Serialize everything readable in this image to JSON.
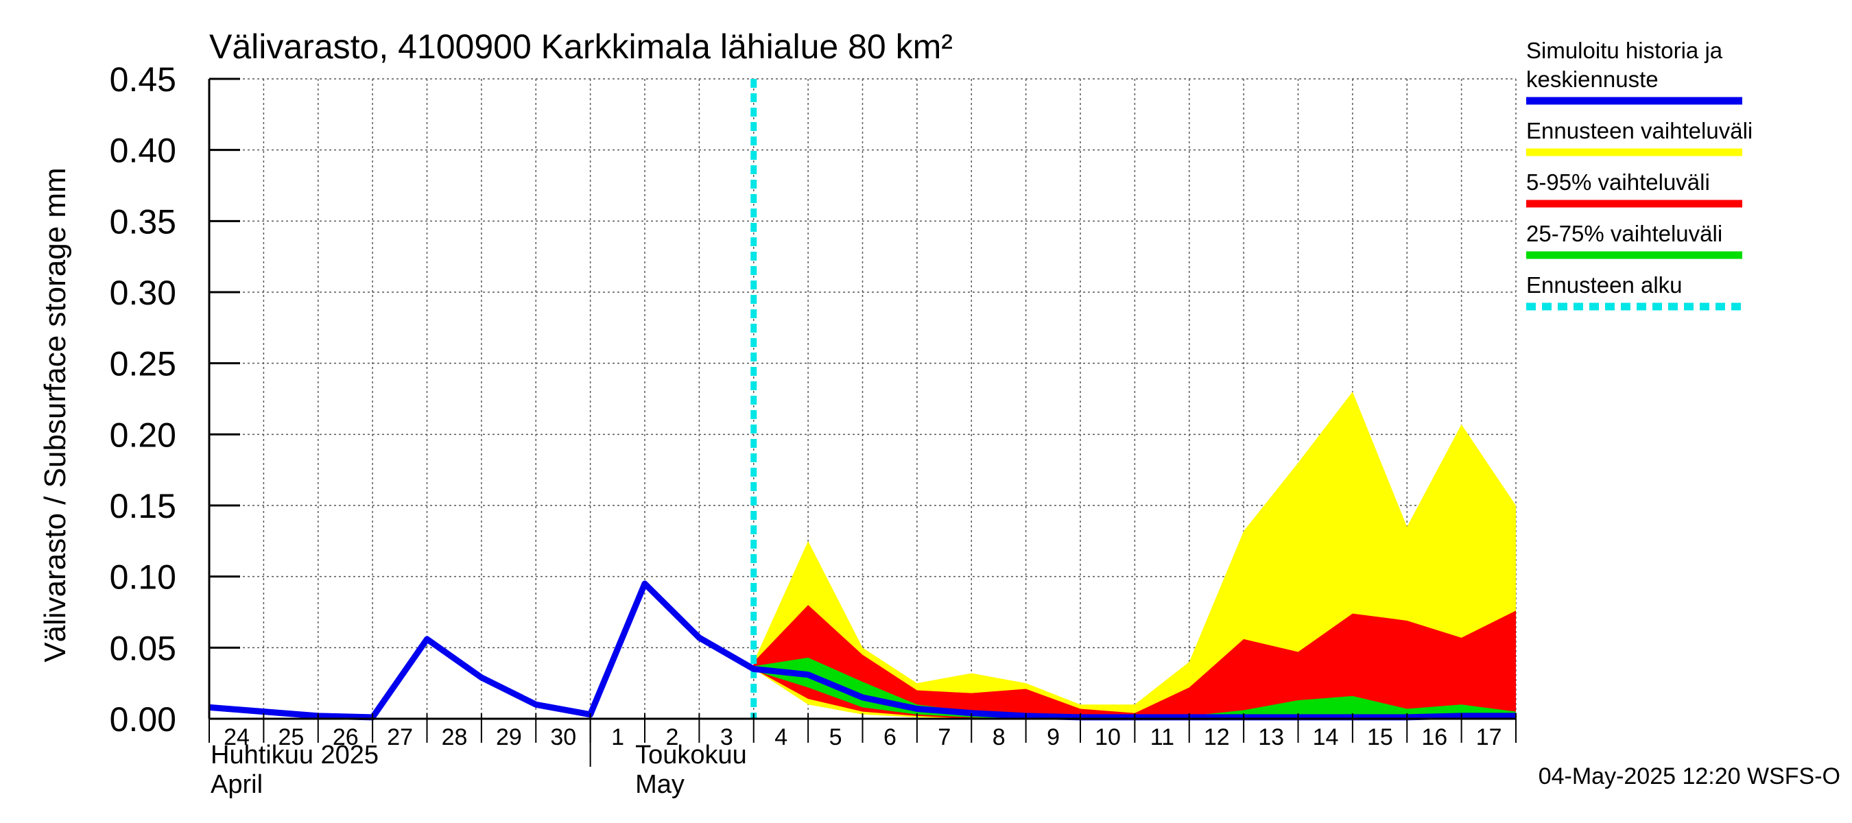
{
  "chart_data": {
    "type": "area",
    "title": "Välivarasto, 4100900 Karkkimala lähialue 80 km²",
    "ylabel": "Välivarasto / Subsurface storage  mm",
    "ylim": [
      0,
      0.45
    ],
    "yticks": [
      "0.00",
      "0.05",
      "0.10",
      "0.15",
      "0.20",
      "0.25",
      "0.30",
      "0.35",
      "0.40",
      "0.45"
    ],
    "xlim": [
      0,
      24
    ],
    "x_tick_labels": [
      "24",
      "25",
      "26",
      "27",
      "28",
      "29",
      "30",
      "1",
      "2",
      "3",
      "4",
      "5",
      "6",
      "7",
      "8",
      "9",
      "10",
      "11",
      "12",
      "13",
      "14",
      "15",
      "16",
      "17"
    ],
    "month_labels": [
      {
        "line1": "Huhtikuu  2025",
        "line2": "April",
        "day_index": 0
      },
      {
        "line1": "Toukokuu",
        "line2": "May",
        "day_index": 7.8
      }
    ],
    "forecast_start_x": 10,
    "series": [
      {
        "name": "Simuloitu historia ja keskiennuste",
        "color": "#0000ee",
        "x": [
          0,
          1,
          2,
          3,
          4,
          5,
          6,
          7,
          8,
          9,
          10,
          11,
          12,
          13,
          14,
          15,
          16,
          17,
          18,
          19,
          20,
          21,
          22,
          23,
          24
        ],
        "values": [
          0.008,
          0.005,
          0.002,
          0.001,
          0.056,
          0.029,
          0.01,
          0.003,
          0.095,
          0.057,
          0.035,
          0.031,
          0.015,
          0.007,
          0.004,
          0.002,
          0.001,
          0.001,
          0.001,
          0.001,
          0.001,
          0.001,
          0.001,
          0.002,
          0.002
        ]
      },
      {
        "name": "Ennusteen vaihteluväli",
        "color": "#ffff00",
        "x": [
          10,
          11,
          12,
          13,
          14,
          15,
          16,
          17,
          18,
          19,
          20,
          21,
          22,
          23,
          24
        ],
        "upper": [
          0.04,
          0.125,
          0.05,
          0.025,
          0.032,
          0.025,
          0.01,
          0.01,
          0.04,
          0.132,
          0.18,
          0.23,
          0.135,
          0.207,
          0.15
        ],
        "lower": [
          0.035,
          0.01,
          0.003,
          0.001,
          0.0,
          0.0,
          0.0,
          0.0,
          0.0,
          0.0,
          0.0,
          0.0,
          0.0,
          0.0,
          0.0
        ]
      },
      {
        "name": "5-95% vaihteluväli",
        "color": "#ff0000",
        "x": [
          10,
          11,
          12,
          13,
          14,
          15,
          16,
          17,
          18,
          19,
          20,
          21,
          22,
          23,
          24
        ],
        "upper": [
          0.04,
          0.08,
          0.045,
          0.02,
          0.018,
          0.021,
          0.007,
          0.004,
          0.022,
          0.056,
          0.047,
          0.074,
          0.069,
          0.057,
          0.076
        ],
        "lower": [
          0.035,
          0.014,
          0.005,
          0.002,
          0.0,
          0.0,
          0.0,
          0.0,
          0.0,
          0.0,
          0.0,
          0.0,
          0.0,
          0.0,
          0.0
        ]
      },
      {
        "name": "25-75% vaihteluväli",
        "color": "#00dd00",
        "x": [
          10,
          11,
          12,
          13,
          14,
          15,
          16,
          17,
          18,
          19,
          20,
          21,
          22,
          23,
          24
        ],
        "upper": [
          0.037,
          0.043,
          0.026,
          0.01,
          0.005,
          0.003,
          0.001,
          0.001,
          0.002,
          0.006,
          0.013,
          0.016,
          0.007,
          0.01,
          0.005
        ],
        "lower": [
          0.034,
          0.022,
          0.008,
          0.003,
          0.001,
          0.0,
          0.0,
          0.0,
          0.0,
          0.0,
          0.0,
          0.001,
          0.001,
          0.001,
          0.001
        ]
      }
    ],
    "legend": [
      {
        "label_lines": [
          "Simuloitu historia ja",
          "keskiennuste"
        ],
        "color": "#0000ee",
        "style": "solid"
      },
      {
        "label_lines": [
          "Ennusteen vaihteluväli"
        ],
        "color": "#ffff00",
        "style": "solid"
      },
      {
        "label_lines": [
          "5-95% vaihteluväli"
        ],
        "color": "#ff0000",
        "style": "solid"
      },
      {
        "label_lines": [
          "25-75% vaihteluväli"
        ],
        "color": "#00dd00",
        "style": "solid"
      },
      {
        "label_lines": [
          "Ennusteen alku"
        ],
        "color": "#00e5e5",
        "style": "dashed"
      }
    ],
    "footer": "04-May-2025 12:20 WSFS-O"
  }
}
